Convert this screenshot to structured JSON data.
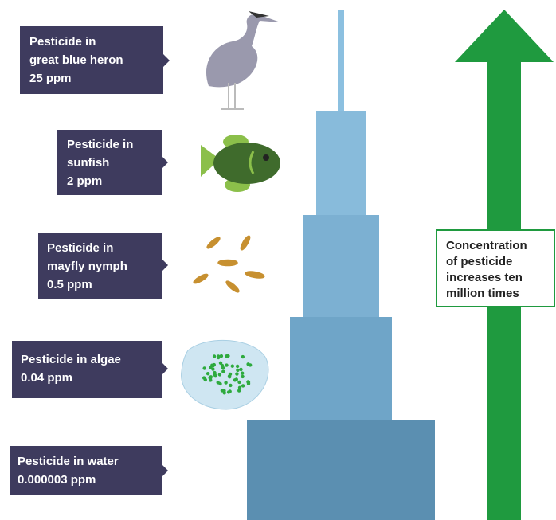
{
  "callouts": [
    {
      "lines": [
        "Pesticide in",
        "great blue heron",
        "25 ppm"
      ]
    },
    {
      "lines": [
        "Pesticide in",
        "sunfish",
        "2 ppm"
      ]
    },
    {
      "lines": [
        "Pesticide in",
        "mayfly nymph",
        "0.5 ppm"
      ]
    },
    {
      "lines": [
        "Pesticide in algae",
        "0.04 ppm"
      ]
    },
    {
      "lines": [
        "Pesticide in water",
        "0.000003 ppm"
      ]
    }
  ],
  "arrow_label": {
    "lines": [
      "Concentration",
      "of pesticide",
      "increases ten",
      "million times"
    ]
  }
}
